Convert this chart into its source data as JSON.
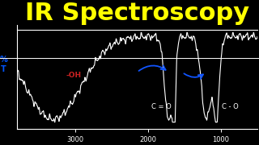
{
  "background_color": "#000000",
  "title": "IR Spectroscopy",
  "title_color": "#FFFF00",
  "title_fontsize": 22,
  "line_color": "#FFFFFF",
  "axis_color": "#FFFFFF",
  "xlabel_ticks": [
    3000,
    2000,
    1000
  ],
  "xlabel_tick_color": "#FFFFFF",
  "ylabel_label": "%\nT",
  "ylabel_color": "#0055FF",
  "oh_label": "-OH",
  "oh_color": "#CC2222",
  "co_double_label": "C = O",
  "co_double_color": "#FFFFFF",
  "co_single_label": "C - O",
  "co_single_color": "#FFFFFF",
  "arrow_color": "#1155FF",
  "separator_line_color": "#FFFFFF",
  "xlim": [
    3800,
    500
  ],
  "ylim": [
    -5,
    105
  ]
}
